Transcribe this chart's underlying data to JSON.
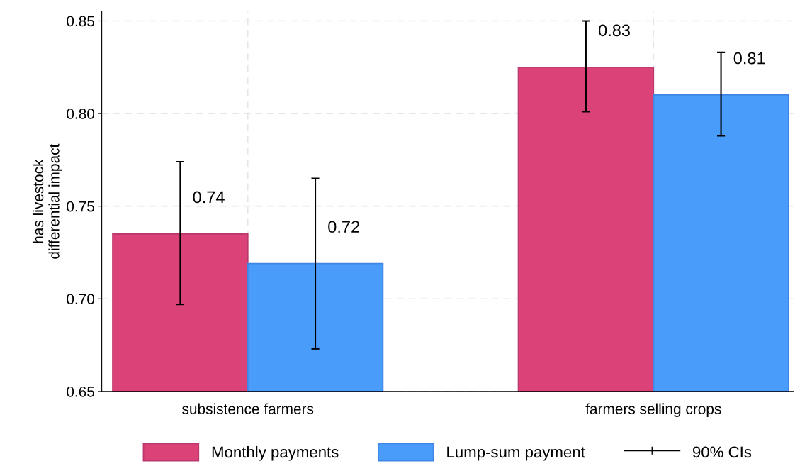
{
  "chart_data": {
    "type": "bar",
    "ylabel": "has livestock\ndifferential impact",
    "categories": [
      "subsistence farmers",
      "farmers selling crops"
    ],
    "series": [
      {
        "name": "Monthly payments",
        "color": "#da4278",
        "values": [
          0.735,
          0.825
        ],
        "errors": [
          [
            0.697,
            0.774
          ],
          [
            0.801,
            0.85
          ]
        ],
        "value_labels": [
          "0.74",
          "0.83"
        ]
      },
      {
        "name": "Lump-sum payment",
        "color": "#4a9cfa",
        "values": [
          0.719,
          0.81
        ],
        "errors": [
          [
            0.673,
            0.765
          ],
          [
            0.788,
            0.833
          ]
        ],
        "value_labels": [
          "0.72",
          "0.81"
        ]
      }
    ],
    "ylim": [
      0.65,
      0.855
    ],
    "yticks": [
      0.65,
      {
        "value": 0.7,
        "label": "0.70"
      },
      0.75,
      {
        "value": 0.8,
        "label": "0.80"
      },
      0.85
    ],
    "grid": true,
    "legend": "bottom",
    "annotations": [
      "90% CIs"
    ]
  }
}
